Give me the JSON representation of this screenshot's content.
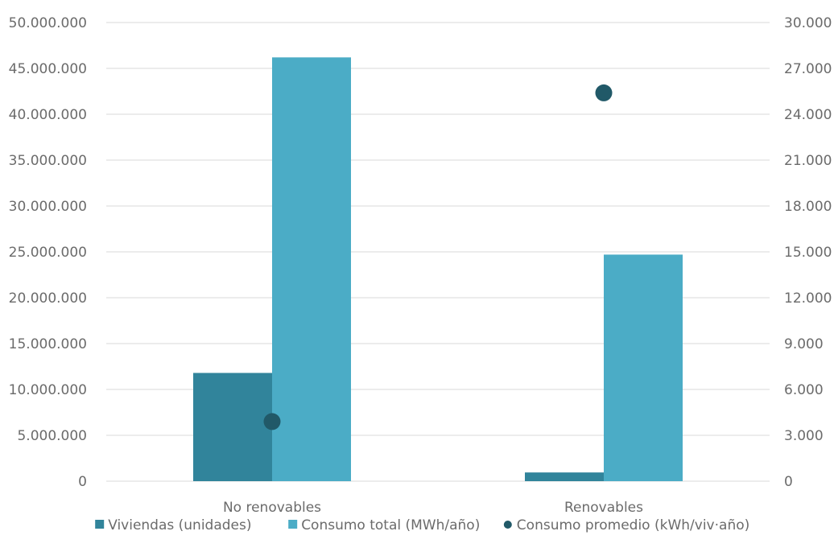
{
  "chart_data": {
    "type": "bar",
    "categories": [
      "No renovables",
      "Renovables"
    ],
    "series": [
      {
        "name": "Viviendas (unidades)",
        "kind": "bar",
        "axis": "left",
        "color": "#31849b",
        "values": [
          11800000,
          950000
        ]
      },
      {
        "name": "Consumo total (MWh/año)",
        "kind": "bar",
        "axis": "left",
        "color": "#4bacc6",
        "values": [
          46200000,
          24700000
        ]
      },
      {
        "name": "Consumo promedio (kWh/viv·año)",
        "kind": "point",
        "axis": "right",
        "color": "#215968",
        "values": [
          3900,
          25400
        ]
      }
    ],
    "y_left": {
      "range": [
        0,
        50000000
      ],
      "ticks": [
        0,
        5000000,
        10000000,
        15000000,
        20000000,
        25000000,
        30000000,
        35000000,
        40000000,
        45000000,
        50000000
      ],
      "tick_labels": [
        "0",
        "5.000.000",
        "10.000.000",
        "15.000.000",
        "20.000.000",
        "25.000.000",
        "30.000.000",
        "35.000.000",
        "40.000.000",
        "45.000.000",
        "50.000.000"
      ]
    },
    "y_right": {
      "range": [
        0,
        30000
      ],
      "ticks": [
        0,
        3000,
        6000,
        9000,
        12000,
        15000,
        18000,
        21000,
        24000,
        27000,
        30000
      ],
      "tick_labels": [
        "0",
        "3.000",
        "6.000",
        "9.000",
        "12.000",
        "15.000",
        "18.000",
        "21.000",
        "24.000",
        "27.000",
        "30.000"
      ]
    },
    "grid": true,
    "legend_position": "bottom",
    "title": "",
    "xlabel": "",
    "ylabel": ""
  }
}
